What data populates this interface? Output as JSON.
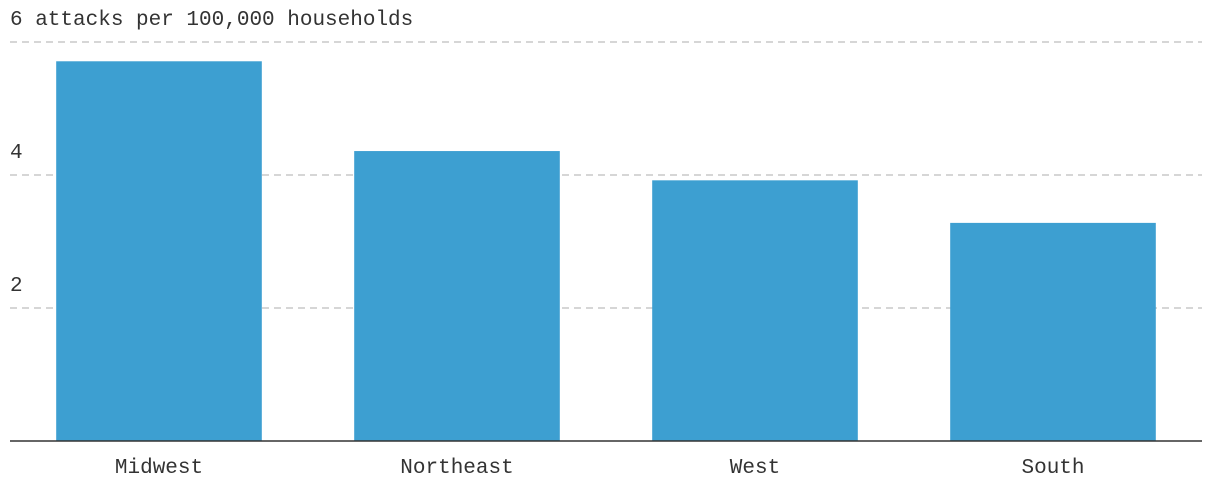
{
  "chart_data": {
    "type": "bar",
    "categories": [
      "Midwest",
      "Northeast",
      "West",
      "South"
    ],
    "values": [
      5.71,
      4.36,
      3.92,
      3.28
    ],
    "color": "#3d9fd1",
    "ylim": [
      0,
      6
    ],
    "yticks": [
      2,
      4,
      {
        "value": 6,
        "label": "6 attacks per 100,000 households"
      }
    ],
    "grid": true
  }
}
